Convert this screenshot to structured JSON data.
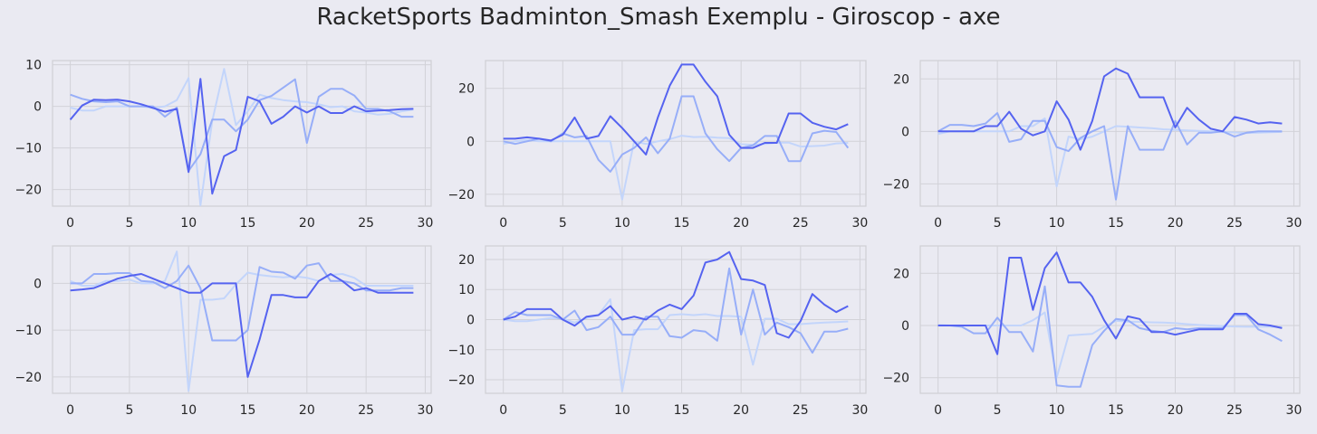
{
  "title": "RacketSports Badminton_Smash Exemplu - Giroscop - axe",
  "colors": {
    "background": "#eaeaf2",
    "grid": "#ffffff",
    "s1": "#5563f0",
    "s2": "#97aef8",
    "s3": "#c3d5fb"
  },
  "chart_data": [
    {
      "type": "line",
      "xlim": [
        -1.5,
        30.5
      ],
      "ylim": [
        -24,
        11
      ],
      "xticks": [
        "0",
        "5",
        "10",
        "15",
        "20",
        "25",
        "30"
      ],
      "yticks": [
        "10",
        "0",
        "−10",
        "−20"
      ],
      "ytick_values": [
        10,
        0,
        -10,
        -20
      ],
      "grid": true,
      "series": [
        {
          "values": [
            -3.2,
            0.2,
            1.6,
            1.5,
            1.6,
            1.2,
            0.5,
            -0.4,
            -1.3,
            -0.6,
            -15.8,
            6.6,
            -21,
            -12,
            -10.5,
            2.3,
            1.2,
            -4.2,
            -2.5,
            0,
            -1.5,
            0,
            -1.6,
            -1.6,
            0,
            -1.2,
            -1,
            -0.9,
            -0.7,
            -0.6
          ]
        },
        {
          "values": [
            2.8,
            1.8,
            1.2,
            1,
            1.2,
            0,
            0,
            0,
            -2.5,
            -0.3,
            -15.5,
            -11.5,
            -3.2,
            -3.2,
            -6,
            -3.2,
            1.5,
            2.5,
            4.5,
            6.5,
            -8.8,
            2.3,
            4.2,
            4.2,
            2.6,
            -0.6,
            -0.6,
            -1.2,
            -2.5,
            -2.5
          ]
        },
        {
          "values": [
            -0.3,
            -1,
            -1,
            0,
            0,
            0,
            0,
            -0.4,
            0,
            1.5,
            6.8,
            -23.8,
            -3.5,
            9,
            -4.5,
            -1.2,
            2.8,
            2,
            1.5,
            1.2,
            1,
            0.5,
            -0.2,
            0,
            -1.2,
            -1.5,
            -2,
            -1.8,
            -1.2,
            -0.8
          ]
        }
      ]
    },
    {
      "type": "line",
      "xlim": [
        -1.5,
        30.5
      ],
      "ylim": [
        -24.5,
        30.5
      ],
      "xticks": [
        "0",
        "5",
        "10",
        "15",
        "20",
        "25",
        "30"
      ],
      "yticks": [
        "20",
        "0",
        "−20"
      ],
      "ytick_values": [
        20,
        0,
        -20
      ],
      "grid": true,
      "series": [
        {
          "values": [
            1,
            1,
            1.5,
            1,
            0.3,
            2.5,
            9,
            1,
            2,
            9.5,
            5,
            0,
            -5,
            9,
            21,
            29,
            29,
            22.5,
            17,
            2.5,
            -2.5,
            -2.5,
            -0.6,
            -0.6,
            10.5,
            10.5,
            7,
            5.5,
            4.5,
            6.5
          ]
        },
        {
          "values": [
            0,
            -1,
            0,
            1,
            0,
            3,
            1.5,
            2,
            -7,
            -11.5,
            -5,
            -2.5,
            1.5,
            -4.5,
            1,
            17,
            17,
            3,
            -3,
            -7.5,
            -2.5,
            -1.5,
            2,
            2,
            -7.5,
            -7.5,
            3,
            4,
            3.5,
            -2.5
          ]
        },
        {
          "values": [
            -1,
            0,
            0.5,
            0,
            0,
            0,
            0,
            0,
            0,
            0,
            -22,
            0,
            -1,
            0,
            0.8,
            2.1,
            1.6,
            1.7,
            1.4,
            1.2,
            -1.1,
            -1.3,
            -1,
            -0.5,
            -0.5,
            -2,
            -1.8,
            -1.6,
            -0.8,
            -0.6
          ]
        }
      ]
    },
    {
      "type": "line",
      "xlim": [
        -1.5,
        30.5
      ],
      "ylim": [
        -28.5,
        27
      ],
      "xticks": [
        "0",
        "5",
        "10",
        "15",
        "20",
        "25",
        "30"
      ],
      "yticks": [
        "20",
        "0",
        "−20"
      ],
      "ytick_values": [
        20,
        0,
        -20
      ],
      "grid": true,
      "series": [
        {
          "values": [
            0,
            0,
            0,
            0,
            2,
            2,
            7.5,
            1,
            -1.5,
            0,
            11.5,
            4.5,
            -7,
            4,
            21,
            24,
            22,
            13,
            13,
            13,
            1.5,
            9,
            4.5,
            1,
            0,
            5.5,
            4.5,
            3,
            3.5,
            3
          ]
        },
        {
          "values": [
            0,
            2.5,
            2.5,
            2,
            3,
            7,
            -4,
            -3,
            4,
            4,
            -6,
            -7.5,
            -2.5,
            0,
            2,
            -26,
            2,
            -7,
            -7,
            -7,
            4,
            -5,
            -0.5,
            -0.5,
            0,
            -2,
            -0.5,
            0,
            0,
            0
          ]
        },
        {
          "values": [
            -1,
            0,
            0,
            0,
            0,
            0,
            0,
            2,
            2,
            5,
            -21,
            -2,
            -3,
            -2,
            0,
            2,
            1.8,
            1.5,
            1.2,
            0.8,
            0.6,
            0.4,
            0.2,
            0,
            -0.2,
            -0.4,
            -0.6,
            -0.5,
            -0.3,
            -0.2
          ]
        }
      ]
    },
    {
      "type": "line",
      "xlim": [
        -1.5,
        30.5
      ],
      "ylim": [
        -23.5,
        8
      ],
      "xticks": [
        "0",
        "5",
        "10",
        "15",
        "20",
        "25",
        "30"
      ],
      "yticks": [
        "0",
        "−10",
        "−20"
      ],
      "ytick_values": [
        0,
        -10,
        -20
      ],
      "grid": true,
      "series": [
        {
          "values": [
            -1.5,
            -1.3,
            -1,
            0,
            1,
            1.6,
            2,
            1,
            0,
            -1,
            -2,
            -2,
            0,
            0,
            0,
            -20,
            -12,
            -2.5,
            -2.5,
            -3,
            -3,
            0.5,
            2,
            0.5,
            -1.5,
            -1,
            -2,
            -2,
            -2,
            -2
          ]
        },
        {
          "values": [
            0,
            0,
            2,
            2,
            2.2,
            2.2,
            0.5,
            0.3,
            -1,
            0.5,
            3.8,
            -1,
            -12.2,
            -12.2,
            -12.2,
            -10,
            3.5,
            2.5,
            2.3,
            1,
            3.8,
            4.3,
            0.5,
            0.5,
            0,
            -1.5,
            -1.5,
            -1.5,
            -1,
            -1
          ]
        },
        {
          "values": [
            0.5,
            -0.5,
            -0.5,
            0.5,
            0.5,
            0.8,
            0,
            0,
            0.5,
            6.8,
            -23,
            -3.5,
            -3.5,
            -3.2,
            -0.2,
            2.3,
            1.8,
            1.5,
            1.3,
            1.5,
            1.2,
            0.5,
            1.8,
            2,
            1.2,
            -0.5,
            -0.5,
            -0.5,
            -0.5,
            -0.5
          ]
        }
      ]
    },
    {
      "type": "line",
      "xlim": [
        -1.5,
        30.5
      ],
      "ylim": [
        -24.5,
        24.5
      ],
      "xticks": [
        "0",
        "5",
        "10",
        "15",
        "20",
        "25",
        "30"
      ],
      "yticks": [
        "20",
        "10",
        "0",
        "−10",
        "−20"
      ],
      "ytick_values": [
        20,
        10,
        0,
        -10,
        -20
      ],
      "grid": true,
      "series": [
        {
          "values": [
            0,
            1,
            3.5,
            3.5,
            3.5,
            0,
            -2,
            1,
            1.5,
            4.5,
            0,
            1,
            0,
            3,
            5,
            3.5,
            8,
            19,
            20,
            22.5,
            13.5,
            13,
            11.5,
            -4.5,
            -6,
            -0.5,
            8.5,
            5,
            2.5,
            4.5
          ]
        },
        {
          "values": [
            0,
            2.5,
            1.5,
            1.5,
            1.5,
            0,
            3,
            -3.5,
            -2.5,
            1,
            -5,
            -5,
            1,
            1,
            -5.5,
            -6,
            -3.5,
            -4,
            -7,
            17,
            -5,
            10,
            -5,
            -1,
            -2.5,
            -4.5,
            -11,
            -4,
            -4,
            -3
          ]
        },
        {
          "values": [
            0,
            -0.5,
            -0.5,
            0,
            0.5,
            0.3,
            -1,
            0.5,
            1.5,
            6.8,
            -23.8,
            -3.5,
            -3.2,
            -3.2,
            1.5,
            1.8,
            1.5,
            1.8,
            1.2,
            1.2,
            1,
            -15,
            0.3,
            0.3,
            -1.5,
            -1.5,
            -1.2,
            -1,
            -0.8,
            -0.6
          ]
        }
      ]
    },
    {
      "type": "line",
      "xlim": [
        -1.5,
        30.5
      ],
      "ylim": [
        -26,
        30.5
      ],
      "xticks": [
        "0",
        "5",
        "10",
        "15",
        "20",
        "25",
        "30"
      ],
      "yticks": [
        "20",
        "0",
        "−20"
      ],
      "ytick_values": [
        20,
        0,
        -20
      ],
      "grid": true,
      "series": [
        {
          "values": [
            0,
            0,
            0,
            0,
            0,
            -11,
            26,
            26,
            6,
            22,
            28,
            16.5,
            16.5,
            11,
            2,
            -5,
            3.5,
            2.5,
            -2.5,
            -2.5,
            -3.5,
            -2.5,
            -1.5,
            -1.5,
            -1.5,
            4.5,
            4.5,
            0.5,
            0,
            -1
          ]
        },
        {
          "values": [
            0,
            0,
            -0.5,
            -3,
            -3,
            3,
            -2.5,
            -2.5,
            -10,
            15,
            -23,
            -23.5,
            -23.5,
            -7.5,
            -2,
            2.5,
            2,
            -1,
            -2,
            -2.5,
            -1,
            -1.5,
            -1,
            -1,
            -1,
            4,
            4,
            -1.5,
            -3.5,
            -6
          ]
        },
        {
          "values": [
            0.2,
            0,
            0,
            0,
            0,
            0,
            0,
            0,
            2,
            5,
            -20,
            -3.8,
            -3.5,
            -3.2,
            -0.5,
            1.8,
            1.5,
            1.4,
            1.2,
            1.1,
            0.9,
            0.5,
            0.2,
            0,
            -0.2,
            -0.4,
            -0.5,
            -0.5,
            -0.5,
            -0.6
          ]
        }
      ]
    }
  ]
}
